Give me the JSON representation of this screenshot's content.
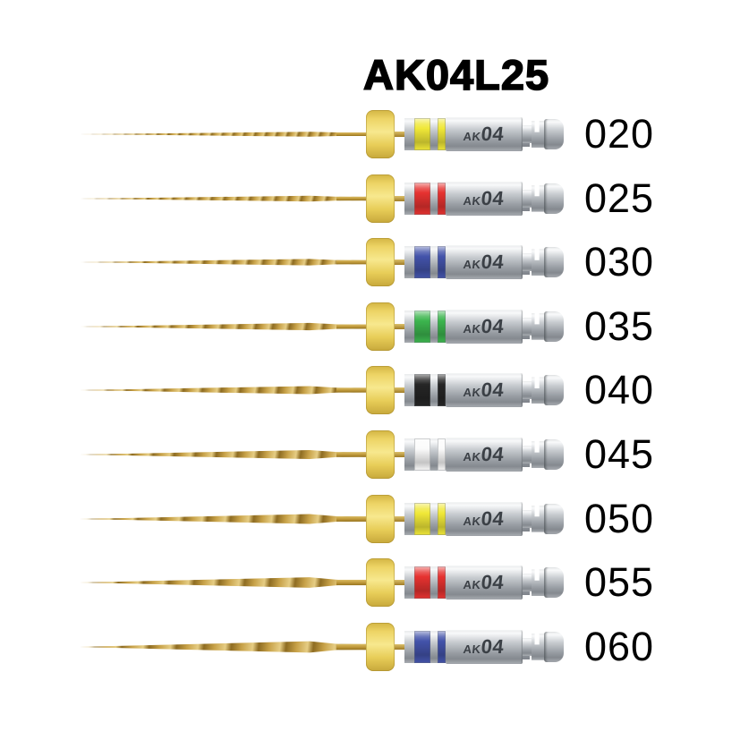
{
  "title": "AK04L25",
  "handle": {
    "code_small": "AK",
    "code_large": "04"
  },
  "rows": [
    {
      "size": "020",
      "band_color": "#f0e838",
      "band_name": "yellow"
    },
    {
      "size": "025",
      "band_color": "#e63230",
      "band_name": "red"
    },
    {
      "size": "030",
      "band_color": "#4353aa",
      "band_name": "blue"
    },
    {
      "size": "035",
      "band_color": "#3cb54e",
      "band_name": "green"
    },
    {
      "size": "040",
      "band_color": "#262626",
      "band_name": "black"
    },
    {
      "size": "045",
      "band_color": "#fbfbfb",
      "band_name": "white"
    },
    {
      "size": "050",
      "band_color": "#f0e838",
      "band_name": "yellow"
    },
    {
      "size": "055",
      "band_color": "#e63230",
      "band_name": "red"
    },
    {
      "size": "060",
      "band_color": "#4353aa",
      "band_name": "blue"
    }
  ],
  "colors": {
    "file_gold": "#c7a148",
    "collar_yellow": "#eed45e",
    "handle_silver": "#b9bdc2",
    "label_text": "#000000",
    "background": "#ffffff"
  }
}
